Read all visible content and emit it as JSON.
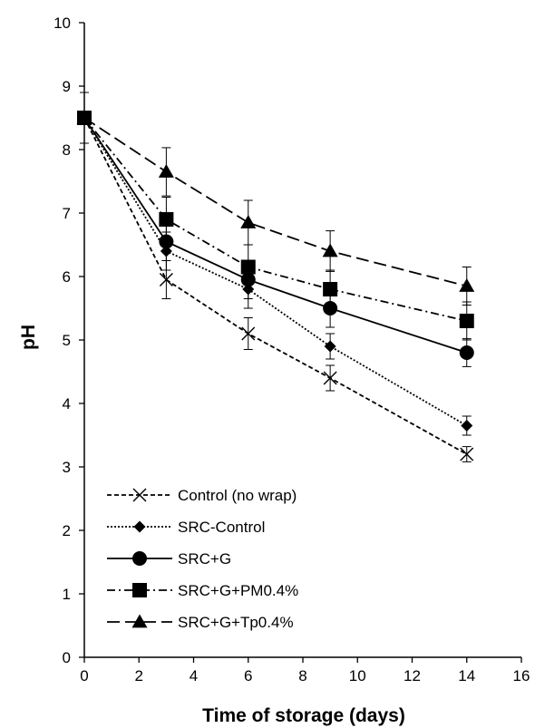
{
  "chart_data": {
    "type": "line",
    "title": "",
    "xlabel": "Time of storage (days)",
    "ylabel": "pH",
    "xlim": [
      0,
      16
    ],
    "ylim": [
      0,
      10
    ],
    "xticks": [
      "0",
      "2",
      "4",
      "6",
      "8",
      "10",
      "12",
      "14",
      "16"
    ],
    "yticks": [
      "0",
      "1",
      "2",
      "3",
      "4",
      "5",
      "6",
      "7",
      "8",
      "9",
      "10"
    ],
    "grid": false,
    "legend_position": "bottom-left",
    "x": [
      0,
      3,
      6,
      9,
      14
    ],
    "series": [
      {
        "name": "Control (no wrap)",
        "marker": "x",
        "dash": "short-dash",
        "values": [
          8.5,
          5.95,
          5.1,
          4.4,
          3.2
        ],
        "errors": [
          0.4,
          0.3,
          0.25,
          0.2,
          0.12
        ]
      },
      {
        "name": "SRC-Control",
        "marker": "diamond",
        "dash": "dotted",
        "values": [
          8.5,
          6.4,
          5.8,
          4.9,
          3.65
        ],
        "errors": [
          0.4,
          0.3,
          0.3,
          0.2,
          0.15
        ]
      },
      {
        "name": "SRC+G",
        "marker": "circle",
        "dash": "solid",
        "values": [
          8.5,
          6.55,
          5.95,
          5.5,
          4.8
        ],
        "errors": [
          0.4,
          0.3,
          0.3,
          0.3,
          0.22
        ]
      },
      {
        "name": "SRC+G+PM0.4%",
        "marker": "square",
        "dash": "dash-dot",
        "values": [
          8.5,
          6.9,
          6.15,
          5.8,
          5.3
        ],
        "errors": [
          0.4,
          0.35,
          0.35,
          0.3,
          0.3
        ]
      },
      {
        "name": "SRC+G+Tp0.4%",
        "marker": "triangle",
        "dash": "long-dash",
        "values": [
          8.5,
          7.65,
          6.85,
          6.4,
          5.85
        ],
        "errors": [
          0.4,
          0.38,
          0.35,
          0.32,
          0.3
        ]
      }
    ]
  }
}
